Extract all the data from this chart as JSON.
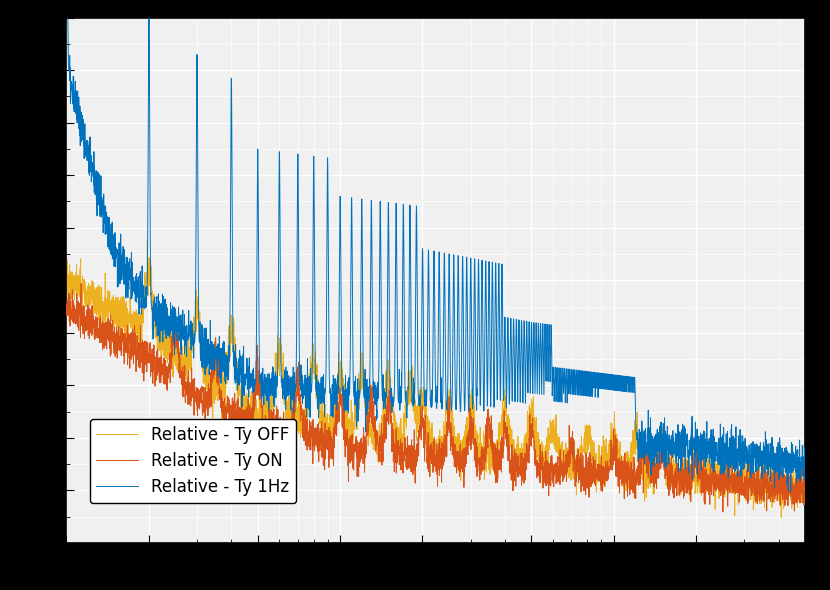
{
  "line1_label": "Relative - Ty 1Hz",
  "line2_label": "Relative - Ty ON",
  "line3_label": "Relative - Ty OFF",
  "line1_color": "#0072BD",
  "line2_color": "#D95319",
  "line3_color": "#EDB120",
  "fig_facecolor": "#000000",
  "ax_facecolor": "#f0f0f0",
  "grid_color": "#ffffff",
  "xlim": [
    1,
    500
  ],
  "ylim": [
    0,
    1.0
  ],
  "fontsize": 13,
  "tick_label_size": 12,
  "legend_fontsize": 12,
  "seed1": 101,
  "seed2": 202,
  "seed3": 303
}
